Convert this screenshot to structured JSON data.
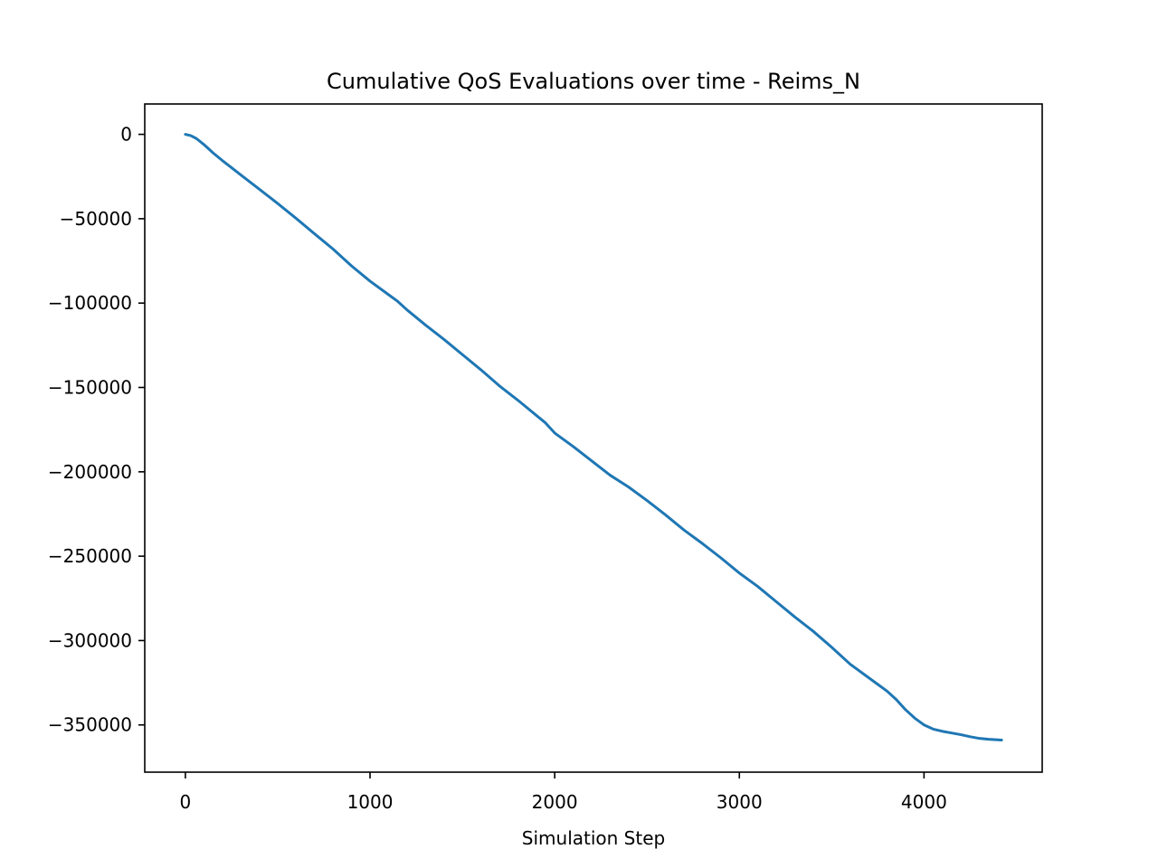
{
  "chart_data": {
    "type": "line",
    "title": "Cumulative QoS Evaluations over time - Reims_N",
    "xlabel": "Simulation Step",
    "ylabel": "",
    "xlim": [
      -220,
      4640
    ],
    "ylim": [
      -378000,
      18000
    ],
    "xticks": [
      0,
      1000,
      2000,
      3000,
      4000
    ],
    "yticks": [
      0,
      -50000,
      -100000,
      -150000,
      -200000,
      -250000,
      -300000,
      -350000
    ],
    "xtick_labels": [
      "0",
      "1000",
      "2000",
      "3000",
      "4000"
    ],
    "ytick_labels": [
      "0",
      "−50000",
      "−100000",
      "−150000",
      "−200000",
      "−250000",
      "−300000",
      "−350000"
    ],
    "grid": false,
    "line_color": "#1f77b4",
    "series": [
      {
        "x": [
          0,
          30,
          60,
          100,
          150,
          200,
          300,
          400,
          500,
          600,
          700,
          800,
          900,
          1000,
          1100,
          1150,
          1200,
          1300,
          1400,
          1500,
          1600,
          1700,
          1800,
          1900,
          1950,
          2000,
          2100,
          2200,
          2300,
          2400,
          2500,
          2600,
          2700,
          2800,
          2900,
          3000,
          3100,
          3200,
          3300,
          3400,
          3500,
          3600,
          3700,
          3800,
          3850,
          3900,
          3950,
          4000,
          4050,
          4100,
          4150,
          4200,
          4250,
          4300,
          4350,
          4420
        ],
        "y": [
          0,
          -800,
          -2500,
          -6000,
          -11000,
          -15500,
          -24000,
          -32500,
          -41000,
          -49800,
          -59000,
          -68000,
          -78000,
          -87000,
          -95000,
          -99000,
          -104000,
          -113000,
          -121500,
          -130500,
          -139500,
          -149000,
          -157500,
          -166500,
          -171000,
          -177000,
          -185000,
          -193500,
          -202000,
          -209000,
          -217000,
          -225500,
          -234500,
          -242500,
          -251000,
          -260000,
          -268000,
          -277000,
          -286000,
          -294500,
          -304000,
          -314000,
          -322000,
          -330000,
          -335000,
          -341000,
          -346000,
          -350000,
          -352500,
          -353800,
          -354800,
          -355800,
          -357000,
          -358000,
          -358500,
          -359000
        ]
      }
    ]
  }
}
